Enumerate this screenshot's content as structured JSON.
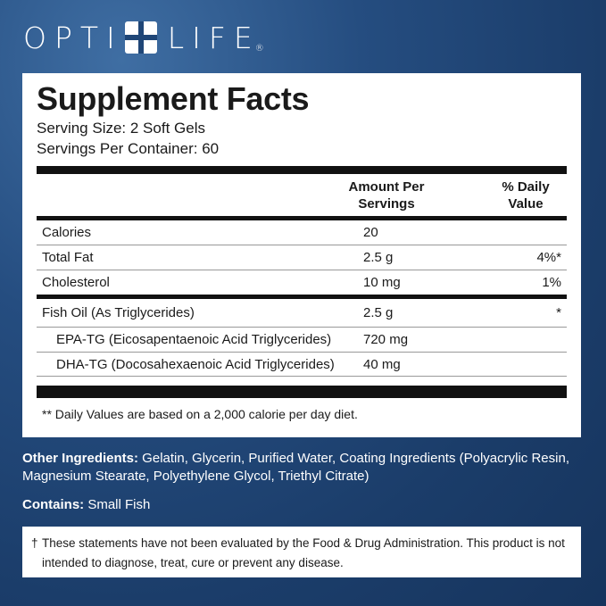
{
  "brand": {
    "left": "OPTI",
    "right": "LIFE",
    "registered": "®"
  },
  "facts": {
    "title": "Supplement Facts",
    "serving_size": "Serving Size: 2 Soft Gels",
    "servings_per_container": "Servings Per Container: 60",
    "header_amount_line1": "Amount Per",
    "header_amount_line2": "Servings",
    "header_dv_line1": "% Daily",
    "header_dv_line2": "Value",
    "rows": [
      {
        "name": "Calories",
        "amount": "20",
        "dv": ""
      },
      {
        "name": "Total Fat",
        "amount": "2.5 g",
        "dv": "4%*"
      },
      {
        "name": "Cholesterol",
        "amount": "10 mg",
        "dv": "1%"
      }
    ],
    "rows2": [
      {
        "name": "Fish Oil (As Triglycerides)",
        "amount": "2.5 g",
        "dv": "*"
      },
      {
        "name": "EPA-TG (Eicosapentaenoic Acid Triglycerides)",
        "amount": "720 mg",
        "dv": ""
      },
      {
        "name": "DHA-TG (Docosahexaenoic Acid Triglycerides)",
        "amount": "40 mg",
        "dv": ""
      }
    ],
    "footnote": "** Daily Values are based on a 2,000 calorie per day diet."
  },
  "other_ingredients": {
    "label": "Other Ingredients:",
    "text": " Gelatin, Glycerin, Purified Water, Coating Ingredients (Polyacrylic Resin, Magnesium Stearate, Polyethylene Glycol, Triethyl Citrate)"
  },
  "contains": {
    "label": "Contains:",
    "text": " Small Fish"
  },
  "disclaimer": {
    "dagger": "†",
    "text": "These statements have not been evaluated by the Food & Drug Administration. This product is not intended to diagnose, treat, cure or prevent any disease."
  }
}
